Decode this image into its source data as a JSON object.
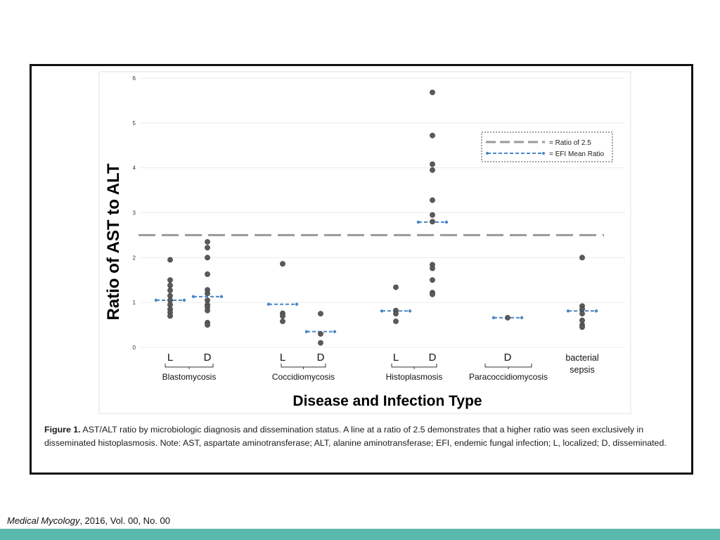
{
  "colors": {
    "point": "#5b5b5b",
    "ratio_line": "#999999",
    "efi_line": "#4a86c5",
    "frame": "#111111",
    "bar": "#5ab9ad"
  },
  "legend": {
    "ratio_label": "= Ratio of 2.5",
    "efi_label": "= EFI Mean Ratio"
  },
  "chart_data": {
    "type": "scatter",
    "ylabel": "Ratio of AST to ALT",
    "xlabel": "Disease and Infection Type",
    "ylim": [
      0,
      6
    ],
    "yticks": [
      "0",
      "1",
      "2",
      "3",
      "4",
      "5",
      "6"
    ],
    "grid": true,
    "legend_position": "top-right",
    "reference_line": {
      "label": "= Ratio of 2.5",
      "value": 2.5
    },
    "columns": [
      {
        "label": "L",
        "group": "Blastomycosis",
        "mean": 1.05,
        "points": [
          1.95,
          1.5,
          1.38,
          1.27,
          1.15,
          1.05,
          0.95,
          0.85,
          0.78,
          0.7
        ]
      },
      {
        "label": "D",
        "group": "Blastomycosis",
        "mean": 1.13,
        "points": [
          2.35,
          2.22,
          2.0,
          1.63,
          1.28,
          1.2,
          1.05,
          0.95,
          0.9,
          0.82,
          0.55,
          0.5
        ]
      },
      {
        "label": "L",
        "group": "Coccidiomycosis",
        "mean": 0.96,
        "points": [
          1.86,
          0.76,
          0.7,
          0.58
        ]
      },
      {
        "label": "D",
        "group": "Coccidiomycosis",
        "mean": 0.35,
        "points": [
          0.75,
          0.3,
          0.1
        ]
      },
      {
        "label": "L",
        "group": "Histoplasmosis",
        "mean": 0.81,
        "points": [
          1.34,
          0.82,
          0.75,
          0.58
        ]
      },
      {
        "label": "D",
        "group": "Histoplasmosis",
        "mean": 2.79,
        "points": [
          5.68,
          4.72,
          4.08,
          3.95,
          3.28,
          2.95,
          2.8,
          1.84,
          1.76,
          1.5,
          1.22,
          1.18
        ]
      },
      {
        "label": "D",
        "group": "Paracoccidiomycosis",
        "mean": 0.66,
        "points": [
          0.66
        ]
      },
      {
        "label": "bacterial\nsepsis",
        "group": "",
        "mean": 0.81,
        "points": [
          2.0,
          0.92,
          0.85,
          0.75,
          0.6,
          0.5,
          0.45
        ]
      }
    ],
    "groups": [
      "Blastomycosis",
      "Coccidiomycosis",
      "Histoplasmosis",
      "Paracoccidiomycosis"
    ]
  },
  "caption": {
    "label": "Figure 1.",
    "text": "AST/ALT ratio by microbiologic diagnosis and dissemination status. A line at a ratio of 2.5 demonstrates that a higher ratio was seen exclusively in disseminated histoplasmosis. Note: AST, aspartate aminotransferase; ALT, alanine aminotransferase; EFI, endemic fungal infection; L, localized; D, disseminated."
  },
  "citation": {
    "journal": "Medical Mycology",
    "details": ", 2016, Vol. 00, No. 00"
  }
}
